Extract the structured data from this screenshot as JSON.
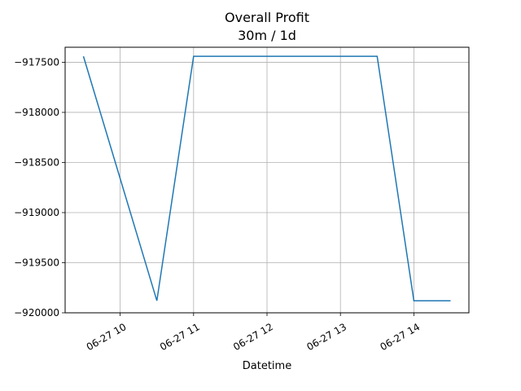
{
  "chart_data": {
    "type": "line",
    "title": "Overall Profit",
    "subtitle": "30m / 1d",
    "xlabel": "Datetime",
    "ylabel": "",
    "x_ticks": [
      "06-27 10",
      "06-27 11",
      "06-27 12",
      "06-27 13",
      "06-27 14"
    ],
    "y_ticks": [
      "−917500",
      "−918000",
      "−918500",
      "−919000",
      "−919500",
      "−920000"
    ],
    "xlim": [
      "06-27 09:15",
      "06-27 14:45"
    ],
    "ylim": [
      -920000,
      -917350
    ],
    "grid": true,
    "series": [
      {
        "color": "#1f77b4",
        "x": [
          "06-27 09:30",
          "06-27 10:30",
          "06-27 11:00",
          "06-27 13:30",
          "06-27 14:00",
          "06-27 14:30"
        ],
        "y": [
          -917440,
          -919880,
          -917440,
          -917440,
          -919880,
          -919880
        ]
      }
    ]
  }
}
